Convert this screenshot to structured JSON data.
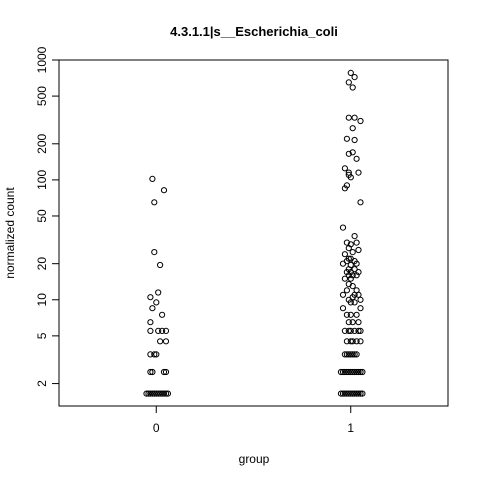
{
  "chart_data": {
    "type": "scatter",
    "title": "4.3.1.1|s__Escherichia_coli",
    "xlabel": "group",
    "ylabel": "normalized count",
    "y_scale": "log",
    "ylim": [
      1.3,
      1000
    ],
    "y_ticks": [
      2,
      5,
      10,
      20,
      50,
      100,
      200,
      500,
      1000
    ],
    "y_tick_labels": [
      "2",
      "5",
      "10",
      "20",
      "50",
      "100",
      "200",
      "500",
      "1000"
    ],
    "categories": [
      "0",
      "1"
    ],
    "xlim": [
      -0.5,
      1.5
    ],
    "marker": "open-circle",
    "series": [
      {
        "group": "0",
        "points": [
          {
            "x": -0.02,
            "y": 102
          },
          {
            "x": 0.04,
            "y": 82
          },
          {
            "x": -0.01,
            "y": 65
          },
          {
            "x": -0.01,
            "y": 25
          },
          {
            "x": 0.02,
            "y": 19.5
          },
          {
            "x": 0.01,
            "y": 11.5
          },
          {
            "x": -0.03,
            "y": 10.5
          },
          {
            "x": 0.0,
            "y": 9.5
          },
          {
            "x": -0.02,
            "y": 8.5
          },
          {
            "x": 0.03,
            "y": 7.5
          },
          {
            "x": -0.03,
            "y": 6.5
          },
          {
            "x": -0.03,
            "y": 5.5
          },
          {
            "x": 0.01,
            "y": 5.5
          },
          {
            "x": 0.03,
            "y": 5.5
          },
          {
            "x": 0.05,
            "y": 5.5
          },
          {
            "x": 0.02,
            "y": 4.5
          },
          {
            "x": 0.05,
            "y": 4.5
          },
          {
            "x": -0.03,
            "y": 3.5
          },
          {
            "x": -0.01,
            "y": 3.5
          },
          {
            "x": 0.0,
            "y": 3.5
          },
          {
            "x": -0.03,
            "y": 2.5
          },
          {
            "x": -0.02,
            "y": 2.5
          },
          {
            "x": 0.04,
            "y": 2.5
          },
          {
            "x": 0.05,
            "y": 2.5
          },
          {
            "x": -0.05,
            "y": 1.65
          },
          {
            "x": -0.04,
            "y": 1.65
          },
          {
            "x": -0.03,
            "y": 1.65
          },
          {
            "x": -0.02,
            "y": 1.65
          },
          {
            "x": -0.01,
            "y": 1.65
          },
          {
            "x": 0.0,
            "y": 1.65
          },
          {
            "x": 0.01,
            "y": 1.65
          },
          {
            "x": 0.02,
            "y": 1.65
          },
          {
            "x": 0.03,
            "y": 1.65
          },
          {
            "x": 0.04,
            "y": 1.65
          },
          {
            "x": 0.05,
            "y": 1.65
          },
          {
            "x": 0.06,
            "y": 1.65
          }
        ]
      },
      {
        "group": "1",
        "points": [
          {
            "x": 1.0,
            "y": 780
          },
          {
            "x": 1.02,
            "y": 720
          },
          {
            "x": 0.99,
            "y": 650
          },
          {
            "x": 1.01,
            "y": 590
          },
          {
            "x": 0.99,
            "y": 330
          },
          {
            "x": 1.02,
            "y": 330
          },
          {
            "x": 1.05,
            "y": 310
          },
          {
            "x": 1.01,
            "y": 270
          },
          {
            "x": 0.98,
            "y": 220
          },
          {
            "x": 1.02,
            "y": 215
          },
          {
            "x": 0.99,
            "y": 165
          },
          {
            "x": 1.01,
            "y": 170
          },
          {
            "x": 1.03,
            "y": 150
          },
          {
            "x": 0.97,
            "y": 125
          },
          {
            "x": 0.99,
            "y": 115
          },
          {
            "x": 0.99,
            "y": 110
          },
          {
            "x": 1.04,
            "y": 115
          },
          {
            "x": 1.0,
            "y": 105
          },
          {
            "x": 0.98,
            "y": 90
          },
          {
            "x": 0.97,
            "y": 85
          },
          {
            "x": 1.05,
            "y": 65
          },
          {
            "x": 0.96,
            "y": 40
          },
          {
            "x": 1.02,
            "y": 34
          },
          {
            "x": 0.98,
            "y": 30
          },
          {
            "x": 1.0,
            "y": 29
          },
          {
            "x": 1.03,
            "y": 30
          },
          {
            "x": 0.99,
            "y": 27
          },
          {
            "x": 1.04,
            "y": 26
          },
          {
            "x": 1.01,
            "y": 25
          },
          {
            "x": 0.97,
            "y": 24
          },
          {
            "x": 0.99,
            "y": 22
          },
          {
            "x": 1.0,
            "y": 22
          },
          {
            "x": 1.02,
            "y": 21
          },
          {
            "x": 0.98,
            "y": 21
          },
          {
            "x": 0.96,
            "y": 20
          },
          {
            "x": 1.03,
            "y": 20
          },
          {
            "x": 1.0,
            "y": 19.5
          },
          {
            "x": 0.99,
            "y": 18
          },
          {
            "x": 1.02,
            "y": 18
          },
          {
            "x": 0.98,
            "y": 17
          },
          {
            "x": 1.0,
            "y": 17
          },
          {
            "x": 1.04,
            "y": 17
          },
          {
            "x": 0.99,
            "y": 16
          },
          {
            "x": 1.01,
            "y": 16
          },
          {
            "x": 1.03,
            "y": 16
          },
          {
            "x": 0.97,
            "y": 15
          },
          {
            "x": 1.0,
            "y": 15
          },
          {
            "x": 0.99,
            "y": 13.5
          },
          {
            "x": 1.01,
            "y": 13
          },
          {
            "x": 0.98,
            "y": 12
          },
          {
            "x": 1.03,
            "y": 12
          },
          {
            "x": 0.96,
            "y": 11
          },
          {
            "x": 1.02,
            "y": 11
          },
          {
            "x": 1.04,
            "y": 11
          },
          {
            "x": 0.99,
            "y": 10
          },
          {
            "x": 1.01,
            "y": 10.5
          },
          {
            "x": 1.05,
            "y": 10
          },
          {
            "x": 1.0,
            "y": 9.5
          },
          {
            "x": 1.02,
            "y": 9.5
          },
          {
            "x": 0.96,
            "y": 8.5
          },
          {
            "x": 1.05,
            "y": 8.5
          },
          {
            "x": 0.98,
            "y": 7.5
          },
          {
            "x": 1.0,
            "y": 7.5
          },
          {
            "x": 1.03,
            "y": 7.5
          },
          {
            "x": 0.99,
            "y": 6.5
          },
          {
            "x": 1.01,
            "y": 6.5
          },
          {
            "x": 1.04,
            "y": 6.5
          },
          {
            "x": 0.97,
            "y": 5.5
          },
          {
            "x": 0.99,
            "y": 5.5
          },
          {
            "x": 1.0,
            "y": 5.5
          },
          {
            "x": 1.02,
            "y": 5.5
          },
          {
            "x": 1.04,
            "y": 5.5
          },
          {
            "x": 1.05,
            "y": 5.5
          },
          {
            "x": 0.98,
            "y": 4.5
          },
          {
            "x": 1.0,
            "y": 4.5
          },
          {
            "x": 1.01,
            "y": 4.5
          },
          {
            "x": 1.03,
            "y": 4.5
          },
          {
            "x": 1.05,
            "y": 4.5
          },
          {
            "x": 0.97,
            "y": 3.5
          },
          {
            "x": 0.98,
            "y": 3.5
          },
          {
            "x": 0.99,
            "y": 3.5
          },
          {
            "x": 1.0,
            "y": 3.5
          },
          {
            "x": 1.01,
            "y": 3.5
          },
          {
            "x": 1.02,
            "y": 3.5
          },
          {
            "x": 1.03,
            "y": 3.5
          },
          {
            "x": 0.95,
            "y": 2.5
          },
          {
            "x": 0.96,
            "y": 2.5
          },
          {
            "x": 0.97,
            "y": 2.5
          },
          {
            "x": 0.98,
            "y": 2.5
          },
          {
            "x": 0.99,
            "y": 2.5
          },
          {
            "x": 1.0,
            "y": 2.5
          },
          {
            "x": 1.01,
            "y": 2.5
          },
          {
            "x": 1.02,
            "y": 2.5
          },
          {
            "x": 1.03,
            "y": 2.5
          },
          {
            "x": 1.04,
            "y": 2.5
          },
          {
            "x": 1.05,
            "y": 2.5
          },
          {
            "x": 1.06,
            "y": 2.5
          },
          {
            "x": 0.95,
            "y": 1.65
          },
          {
            "x": 0.96,
            "y": 1.65
          },
          {
            "x": 0.97,
            "y": 1.65
          },
          {
            "x": 0.98,
            "y": 1.65
          },
          {
            "x": 0.99,
            "y": 1.65
          },
          {
            "x": 1.0,
            "y": 1.65
          },
          {
            "x": 1.01,
            "y": 1.65
          },
          {
            "x": 1.02,
            "y": 1.65
          },
          {
            "x": 1.03,
            "y": 1.65
          },
          {
            "x": 1.04,
            "y": 1.65
          },
          {
            "x": 1.05,
            "y": 1.65
          },
          {
            "x": 1.06,
            "y": 1.65
          }
        ]
      }
    ],
    "grid": false,
    "legend": "none"
  }
}
